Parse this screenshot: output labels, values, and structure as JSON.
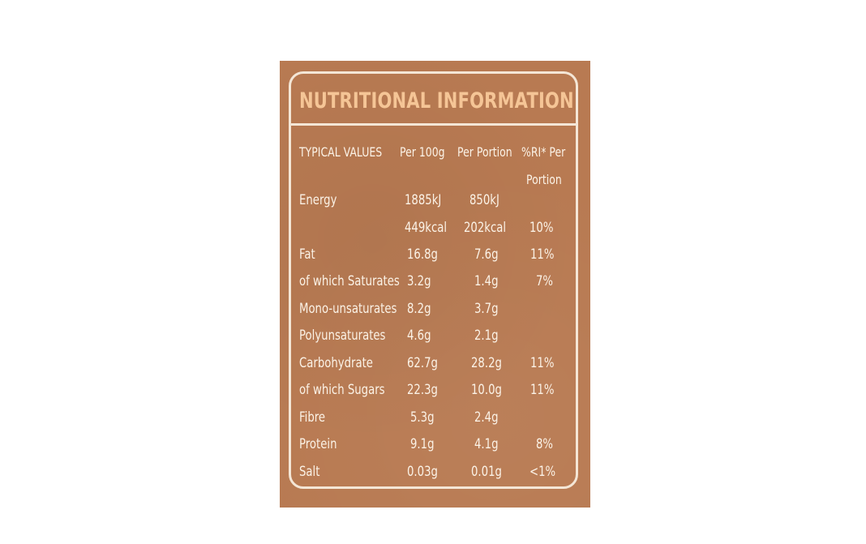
{
  "title": "NUTRITIONAL INFORMATION",
  "headers": {
    "typical_values": "TYPICAL VALUES",
    "per_100g": "Per 100g",
    "per_portion": "Per Portion",
    "ri_line1": "%RI* Per",
    "ri_line2": "Portion"
  },
  "rows": [
    {
      "name": "Energy",
      "per100": "1885kJ",
      "portion": "850kJ",
      "ri": ""
    },
    {
      "name": "",
      "per100": "449kcal",
      "portion": "202kcal",
      "ri": "10%"
    },
    {
      "name": "Fat",
      "per100": "16.8g",
      "portion": "7.6g",
      "ri": "11%"
    },
    {
      "name": "of which Saturates",
      "per100": "3.2g",
      "portion": "1.4g",
      "ri": "7%"
    },
    {
      "name": "Mono-unsaturates",
      "per100": "8.2g",
      "portion": "3.7g",
      "ri": ""
    },
    {
      "name": "Polyunsaturates",
      "per100": "4.6g",
      "portion": "2.1g",
      "ri": ""
    },
    {
      "name": "Carbohydrate",
      "per100": "62.7g",
      "portion": "28.2g",
      "ri": "11%"
    },
    {
      "name": "of which Sugars",
      "per100": "22.3g",
      "portion": "10.0g",
      "ri": "11%"
    },
    {
      "name": "Fibre",
      "per100": "5.3g",
      "portion": "2.4g",
      "ri": ""
    },
    {
      "name": "Protein",
      "per100": "9.1g",
      "portion": "4.1g",
      "ri": "8%"
    },
    {
      "name": "Salt",
      "per100": "0.03g",
      "portion": "0.01g",
      "ri": "<1%"
    }
  ],
  "colors": {
    "background": "#b87a52",
    "title_text": "#f5c596",
    "body_text": "#fbf2e6",
    "frame": "#f4e6d6"
  }
}
